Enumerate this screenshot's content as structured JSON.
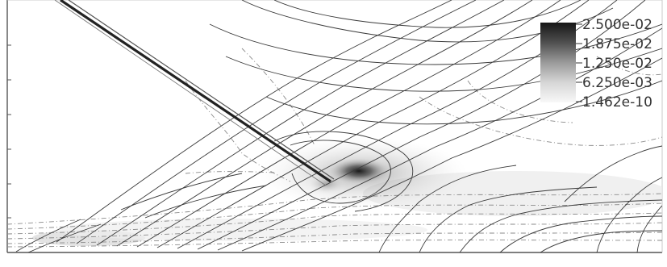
{
  "legend": {
    "labels": [
      "2.500e-02",
      "1.875e-02",
      "1.250e-02",
      "6.250e-03",
      "1.462e-10"
    ],
    "color_high": "#1a1a1a",
    "color_low": "#f4f4f4"
  },
  "colors": {
    "frame": "#555555",
    "contour_solid": "#3a3a3a",
    "contour_dashed": "#8a8a8a",
    "shock": "#222222"
  }
}
